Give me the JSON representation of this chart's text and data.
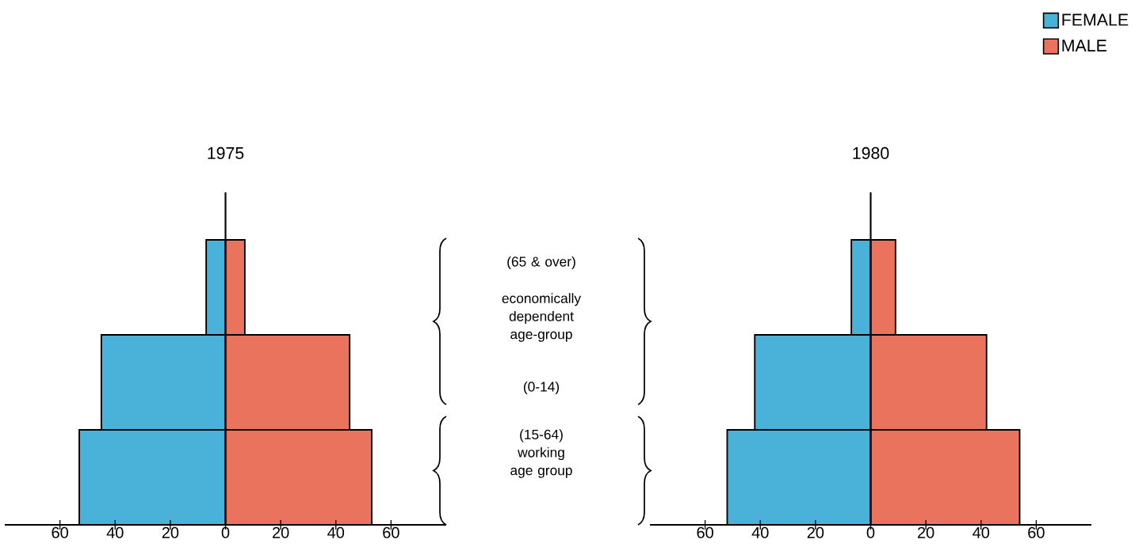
{
  "chart_data": [
    {
      "type": "bar",
      "orientation": "horizontal",
      "stacked": true,
      "title": "1975",
      "categories": [
        null,
        null,
        null
      ],
      "series": [
        {
          "color": "#4ab2d8",
          "values": [
            -7,
            -45,
            -53
          ]
        },
        {
          "color": "#e9735d",
          "values": [
            7,
            45,
            53
          ]
        }
      ],
      "xlim": [
        -80,
        80
      ],
      "xticks": [
        {
          "value": -60,
          "label": "60"
        },
        {
          "value": -40,
          "label": "40"
        },
        {
          "value": -20,
          "label": "20"
        },
        0,
        20,
        40,
        60
      ],
      "annotations": [
        "(65 & over)",
        "economically dependent age-group",
        "(0-14)",
        "(15-64) working age group"
      ]
    },
    {
      "type": "bar",
      "orientation": "horizontal",
      "stacked": true,
      "title": "1980",
      "categories": [
        null,
        null,
        null
      ],
      "series": [
        {
          "name": "FEMALE",
          "color": "#4ab2d8",
          "values": [
            -7,
            -42,
            -52
          ]
        },
        {
          "name": "MALE",
          "color": "#e9735d",
          "values": [
            9,
            42,
            54
          ]
        }
      ],
      "xlim": [
        -80,
        80
      ],
      "xticks": [
        {
          "value": -60,
          "label": "60"
        },
        {
          "value": -40,
          "label": "40"
        },
        {
          "value": -20,
          "label": "20"
        },
        0,
        20,
        40,
        60
      ],
      "legend": "top right"
    }
  ]
}
